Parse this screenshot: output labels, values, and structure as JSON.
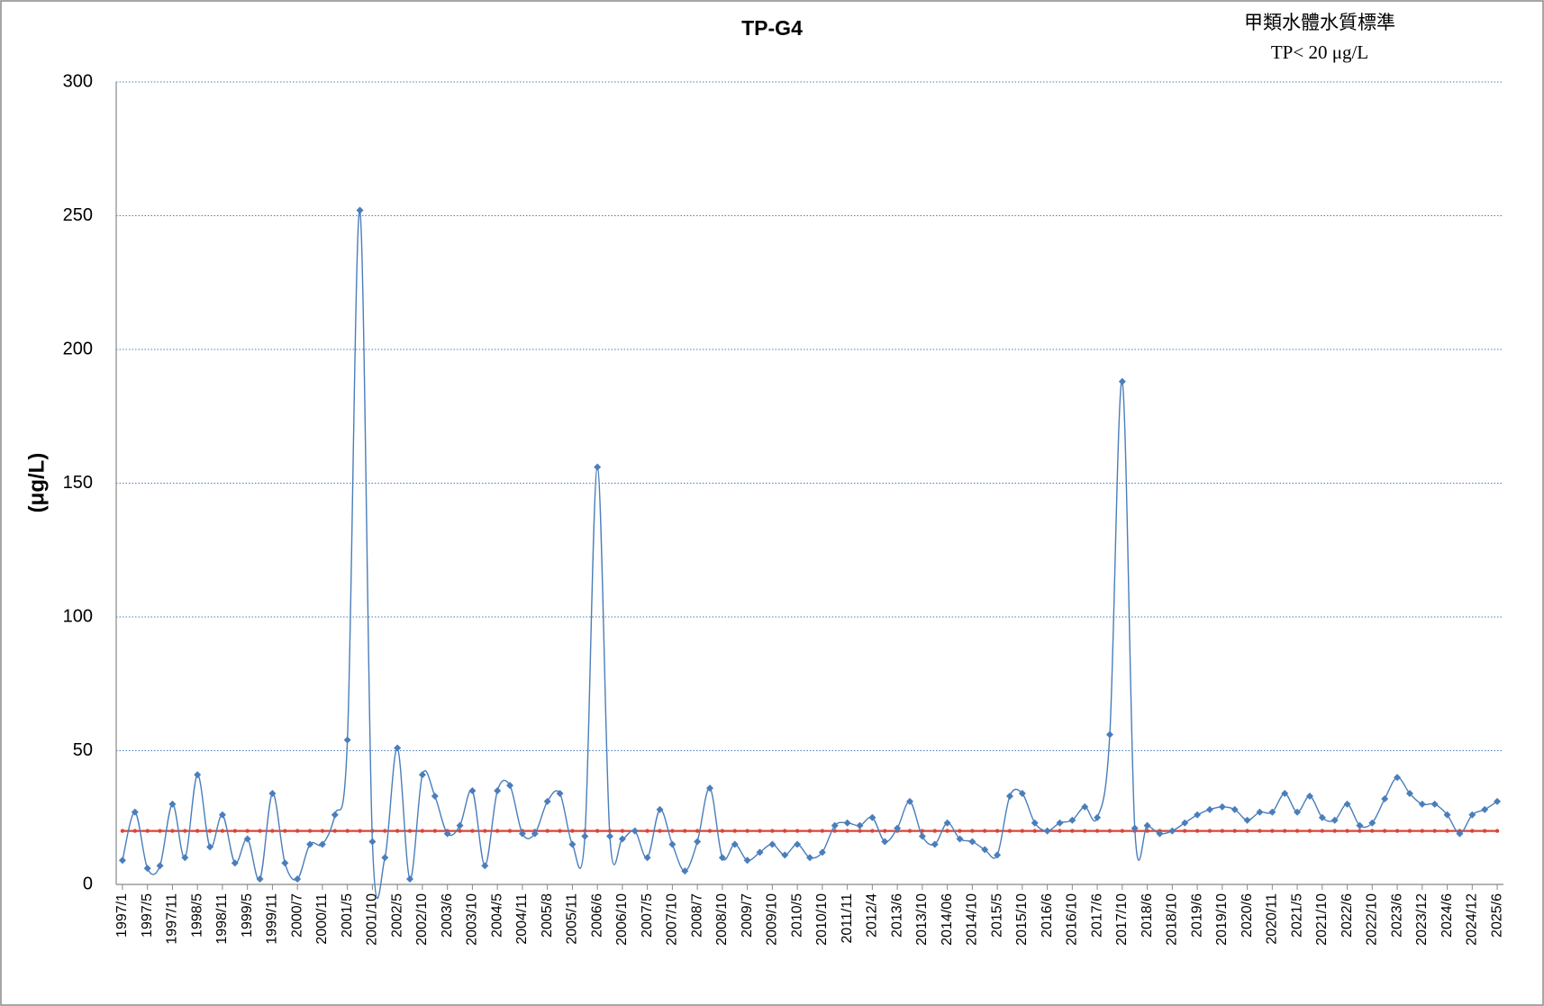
{
  "chart_data": {
    "type": "line",
    "title": "TP-G4",
    "annotation": [
      "甲類水體水質標準",
      "TP< 20 μg/L"
    ],
    "y_label": "(μg/L)",
    "categories": [
      "1997/1",
      null,
      "1997/5",
      null,
      "1997/11",
      null,
      "1998/5",
      null,
      "1998/11",
      null,
      "1999/5",
      null,
      "1999/11",
      null,
      "2000/7",
      null,
      "2000/11",
      null,
      "2001/5",
      null,
      "2001/10",
      null,
      "2002/5",
      null,
      "2002/10",
      null,
      "2003/6",
      null,
      "2003/10",
      null,
      "2004/5",
      null,
      "2004/11",
      null,
      "2005/8",
      null,
      "2005/11",
      null,
      "2006/6",
      null,
      "2006/10",
      null,
      "2007/5",
      null,
      "2007/10",
      null,
      "2008/7",
      null,
      "2008/10",
      null,
      "2009/7",
      null,
      "2009/10",
      null,
      "2010/5",
      null,
      "2010/10",
      null,
      "2011/11",
      null,
      "2012/4",
      null,
      "2013/6",
      null,
      "2013/10",
      null,
      "2014/06",
      null,
      "2014/10",
      null,
      "2015/5",
      null,
      "2015/10",
      null,
      "2016/6",
      null,
      "2016/10",
      null,
      "2017/6",
      null,
      "2017/10",
      null,
      "2018/6",
      null,
      "2018/10",
      null,
      "2019/6",
      null,
      "2019/10",
      null,
      "2020/6",
      null,
      "2020/11",
      null,
      "2021/5",
      null,
      "2021/10",
      null,
      "2022/6",
      null,
      "2022/10",
      null,
      "2023/6",
      null,
      "2023/12",
      null,
      "2024/6",
      null,
      "2024/12",
      null,
      "2025/6"
    ],
    "series": [
      {
        "color": "#4a7ebb",
        "marker": "diamond",
        "smooth": true,
        "values": [
          9,
          27,
          6,
          7,
          30,
          10,
          41,
          14,
          26,
          8,
          17,
          2,
          34,
          8,
          2,
          15,
          15,
          26,
          54,
          252,
          16,
          10,
          51,
          2,
          41,
          33,
          19,
          22,
          35,
          7,
          35,
          37,
          19,
          19,
          31,
          34,
          15,
          18,
          156,
          18,
          17,
          20,
          10,
          28,
          15,
          5,
          16,
          36,
          10,
          15,
          9,
          12,
          15,
          11,
          15,
          10,
          12,
          22,
          23,
          22,
          25,
          16,
          21,
          31,
          18,
          15,
          23,
          17,
          16,
          13,
          11,
          33,
          34,
          23,
          20,
          23,
          24,
          29,
          25,
          56,
          188,
          21,
          22,
          19,
          20,
          23,
          26,
          28,
          29,
          28,
          24,
          27,
          27,
          34,
          27,
          33,
          25,
          24,
          30,
          22,
          23,
          32,
          40,
          34,
          30,
          30,
          26,
          19,
          26,
          28,
          31
        ]
      },
      {
        "color": "#d9463a",
        "marker": "circle",
        "smooth": false,
        "values": [
          20,
          20,
          20,
          20,
          20,
          20,
          20,
          20,
          20,
          20,
          20,
          20,
          20,
          20,
          20,
          20,
          20,
          20,
          20,
          20,
          20,
          20,
          20,
          20,
          20,
          20,
          20,
          20,
          20,
          20,
          20,
          20,
          20,
          20,
          20,
          20,
          20,
          20,
          20,
          20,
          20,
          20,
          20,
          20,
          20,
          20,
          20,
          20,
          20,
          20,
          20,
          20,
          20,
          20,
          20,
          20,
          20,
          20,
          20,
          20,
          20,
          20,
          20,
          20,
          20,
          20,
          20,
          20,
          20,
          20,
          20,
          20,
          20,
          20,
          20,
          20,
          20,
          20,
          20,
          20,
          20,
          20,
          20,
          20,
          20,
          20,
          20,
          20,
          20,
          20,
          20,
          20,
          20,
          20,
          20,
          20,
          20,
          20,
          20,
          20,
          20,
          20,
          20,
          20,
          20,
          20,
          20,
          20,
          20,
          20,
          20
        ]
      }
    ],
    "ylim": [
      0,
      300
    ],
    "yticks": [
      0,
      50,
      100,
      150,
      200,
      250,
      300
    ],
    "grid": true
  }
}
